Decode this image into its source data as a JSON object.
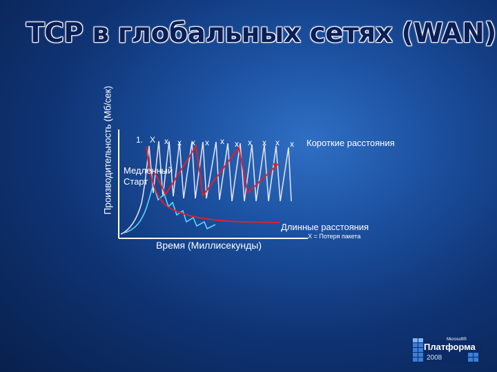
{
  "slide": {
    "title": "TCP в глобальных сетях (WAN)"
  },
  "chart": {
    "ylabel": "Производительность (Мб/сек)",
    "xlabel": "Время (Миллисекунды)",
    "slow_start_line1": "Медленный",
    "slow_start_line2": "Старт",
    "short_distance_label": "Короткие расстояния",
    "long_distance_label": "Длинные расстояния",
    "legend": "X = Потеря пакета",
    "first_marker": "1.",
    "loss_marker": "X",
    "loss_markers_lower": "x",
    "colors": {
      "short_sawtooth": "#e8e8f0",
      "long_sawtooth": "#5ad8ff",
      "red_curve": "#e0202a",
      "axis": "#ffffff"
    }
  },
  "logo": {
    "brand": "Microsoft®",
    "name": "Платформа",
    "year": "2008"
  }
}
